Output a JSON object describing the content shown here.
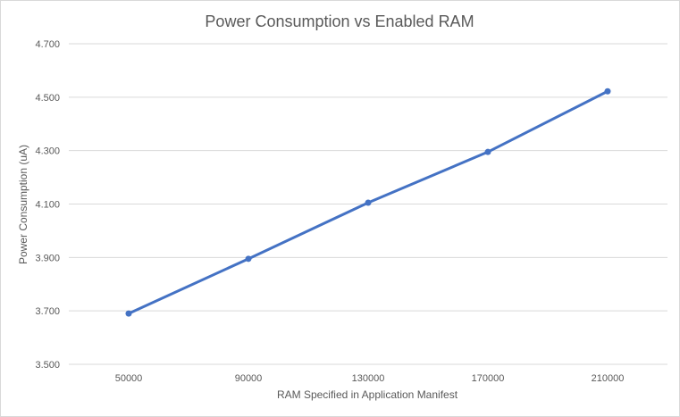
{
  "chart_data": {
    "type": "line",
    "title": "Power Consumption vs Enabled RAM",
    "xlabel": "RAM Specified in Application Manifest",
    "ylabel": "Power Consumption (uA)",
    "categories": [
      "50000",
      "90000",
      "130000",
      "170000",
      "210000"
    ],
    "series": [
      {
        "values": [
          3.69,
          3.895,
          4.105,
          4.295,
          4.522
        ]
      }
    ],
    "ylim": [
      3.5,
      4.7
    ],
    "yticks": [
      "3.500",
      "3.700",
      "3.900",
      "4.100",
      "4.300",
      "4.500",
      "4.700"
    ],
    "grid": true,
    "legend": "none",
    "line_color": "#4472c4",
    "grid_color": "#d9d9d9",
    "text_color": "#595959"
  }
}
